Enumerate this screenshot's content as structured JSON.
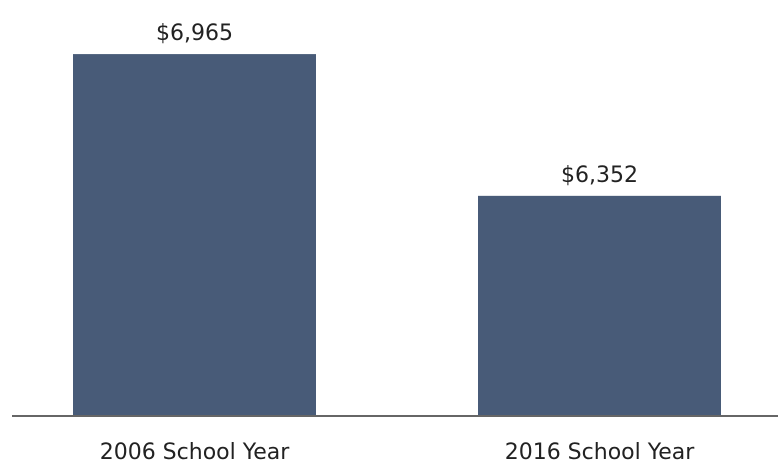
{
  "chart_data": {
    "type": "bar",
    "categories": [
      "2006 School Year",
      "2016 School Year"
    ],
    "values": [
      6965,
      6352
    ],
    "value_labels": [
      "$6,965",
      "$6,352"
    ],
    "ylim": [
      5400,
      7000
    ],
    "grid": false,
    "legend": "none",
    "colors": {
      "bar": "#485b78",
      "axis": "#666666",
      "text": "#222222",
      "background": "#ffffff"
    }
  }
}
